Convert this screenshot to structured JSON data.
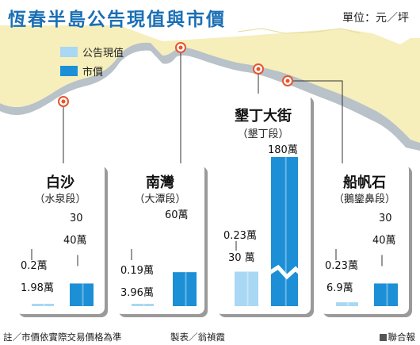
{
  "header": {
    "title": "恆春半島公告現值與市價",
    "unit": "單位：元／坪"
  },
  "legend": [
    {
      "label": "公告現值",
      "color": "#a8d8f3"
    },
    {
      "label": "市價",
      "color": "#1c8fd6"
    }
  ],
  "chart_data": {
    "type": "bar",
    "title": "恆春半島公告現值與市價",
    "unit": "元／坪",
    "series_names": [
      "公告現值",
      "市價"
    ],
    "locations": [
      {
        "name": "白沙",
        "sub": "（水泉段）",
        "announced_low": 0.2,
        "announced_high": 1.98,
        "announced_label_top": "0.2萬",
        "announced_label_bottom": "1.98萬",
        "market_low": 30,
        "market_high": 40,
        "market_label_top": "30",
        "market_label_bottom": "40萬",
        "broken_axis": false
      },
      {
        "name": "南灣",
        "sub": "（大潭段）",
        "announced_low": 0.19,
        "announced_high": 3.96,
        "announced_label_top": "0.19萬",
        "announced_label_bottom": "3.96萬",
        "market_value": 60,
        "market_label": "60萬",
        "broken_axis": false
      },
      {
        "name": "墾丁大街",
        "sub": "（墾丁段）",
        "announced_low": 0.23,
        "announced_high": 30,
        "announced_label_top": "0.23萬",
        "announced_label_bottom": "30 萬",
        "market_value": 180,
        "market_label": "180萬",
        "broken_axis": true
      },
      {
        "name": "船帆石",
        "sub": "（鵝鑾鼻段）",
        "announced_low": 0.23,
        "announced_high": 6.9,
        "announced_label_top": "0.23萬",
        "announced_label_bottom": "6.9萬",
        "market_low": 30,
        "market_high": 40,
        "market_label_top": "30",
        "market_label_bottom": "40萬",
        "broken_axis": false
      }
    ]
  },
  "footer": {
    "note": "註／市價依實際交易價格為準",
    "credit": "製表／翁禎霞",
    "source": "聯合報"
  },
  "colors": {
    "title": "#1a6fb5",
    "land": "#f6eebb",
    "coast": "#b8c2c8",
    "marker": "#e8542b",
    "announced": "#a8d8f3",
    "market": "#1c8fd6"
  }
}
